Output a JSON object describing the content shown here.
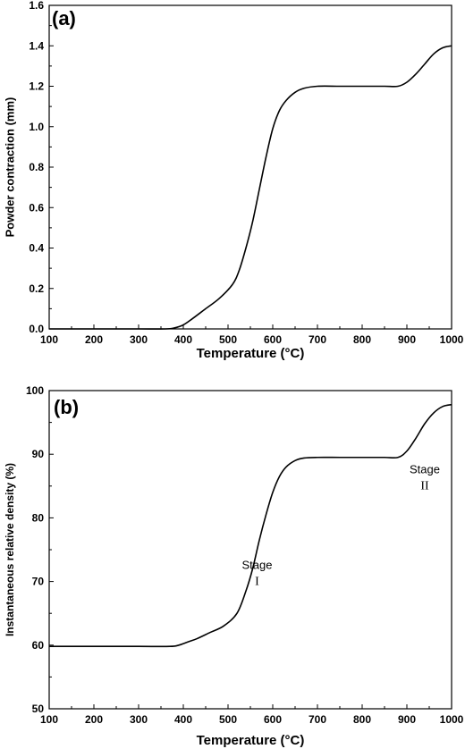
{
  "chart_data": [
    {
      "type": "line",
      "panel_label": "(a)",
      "xlabel": "Temperature (°C)",
      "ylabel": "Powder contraction (mm)",
      "xlim": [
        100,
        1000
      ],
      "ylim": [
        0.0,
        1.6
      ],
      "xticks": [
        "100",
        "200",
        "300",
        "400",
        "500",
        "600",
        "700",
        "800",
        "900",
        "1000"
      ],
      "yticks": [
        "0.0",
        "0.2",
        "0.4",
        "0.6",
        "0.8",
        "1.0",
        "1.2",
        "1.4",
        "1.6"
      ],
      "grid": false,
      "series": [
        {
          "x": [
            100,
            200,
            300,
            360,
            380,
            400,
            420,
            450,
            480,
            510,
            525,
            540,
            555,
            570,
            585,
            600,
            615,
            630,
            650,
            670,
            700,
            750,
            800,
            850,
            880,
            900,
            920,
            940,
            960,
            980,
            1000
          ],
          "y": [
            0.0,
            0.0,
            0.0,
            0.0,
            0.005,
            0.02,
            0.05,
            0.1,
            0.15,
            0.22,
            0.29,
            0.4,
            0.53,
            0.69,
            0.85,
            0.99,
            1.08,
            1.13,
            1.17,
            1.19,
            1.2,
            1.2,
            1.2,
            1.2,
            1.2,
            1.22,
            1.26,
            1.31,
            1.36,
            1.39,
            1.4
          ]
        }
      ]
    },
    {
      "type": "line",
      "panel_label": "(b)",
      "xlabel": "Temperature (°C)",
      "ylabel": "Instantaneous relative density (%)",
      "xlim": [
        100,
        1000
      ],
      "ylim": [
        50,
        100
      ],
      "xticks": [
        "100",
        "200",
        "300",
        "400",
        "500",
        "600",
        "700",
        "800",
        "900",
        "1000"
      ],
      "yticks": [
        "50",
        "60",
        "70",
        "80",
        "90",
        "100"
      ],
      "grid": false,
      "annotations": [
        {
          "line1": "Stage",
          "line2": "I",
          "x": 565,
          "y": 72
        },
        {
          "line1": "Stage",
          "line2": "II",
          "x": 940,
          "y": 87
        }
      ],
      "series": [
        {
          "x": [
            100,
            200,
            300,
            370,
            390,
            410,
            430,
            460,
            490,
            520,
            540,
            555,
            570,
            585,
            600,
            615,
            630,
            650,
            670,
            700,
            750,
            800,
            850,
            880,
            900,
            920,
            940,
            960,
            980,
            1000
          ],
          "y": [
            59.8,
            59.8,
            59.8,
            59.8,
            60.0,
            60.5,
            61.0,
            62.0,
            63.0,
            65.0,
            68.5,
            72.0,
            76.5,
            80.5,
            84.0,
            86.5,
            88.0,
            89.0,
            89.4,
            89.5,
            89.5,
            89.5,
            89.5,
            89.5,
            90.5,
            92.5,
            94.8,
            96.5,
            97.5,
            97.8
          ]
        }
      ]
    }
  ]
}
